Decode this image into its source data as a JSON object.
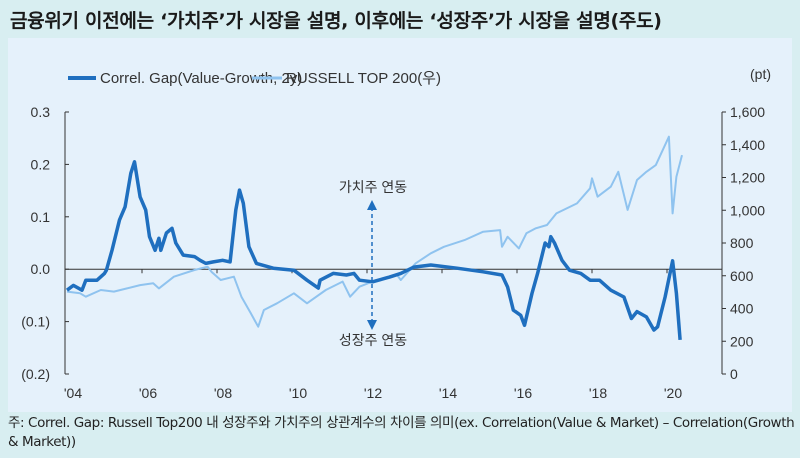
{
  "title": "금융위기 이전에는 ‘가치주’가 시장을 설명, 이후에는 ‘성장주’가 시장을 설명(주도)",
  "footnote": "주: Correl. Gap: Russell Top200 내 성장주와 가치주의 상관계수의 차이를 의미(ex. Correlation(Value & Market) – Correlation(Growth & Market))",
  "chart_data": {
    "type": "line",
    "title": "",
    "right_unit": "(pt)",
    "legend_position": "top",
    "grid": false,
    "x_ticks": [
      "'04",
      "'06",
      "'08",
      "'10",
      "'12",
      "'14",
      "'16",
      "'18",
      "'20"
    ],
    "x_range": [
      2004,
      2021.4
    ],
    "y_left": {
      "ticks": [
        "0.3",
        "0.2",
        "0.1",
        "0.0",
        "(0.1)",
        "(0.2)"
      ],
      "range": [
        -0.2,
        0.3
      ]
    },
    "y_right": {
      "ticks": [
        "1,600",
        "1,400",
        "1,200",
        "1,000",
        "800",
        "600",
        "400",
        "200",
        "0"
      ],
      "range": [
        0,
        1600
      ]
    },
    "annotations": {
      "up": "가치주 연동",
      "down": "성장주 연동"
    },
    "colors": {
      "gap": "#1f6fbf",
      "russell": "#8fc3ef"
    },
    "series": [
      {
        "name": "Correl. Gap(Value-Growth, 2y)",
        "axis": "left",
        "x": [
          2004.0,
          2004.17,
          2004.4,
          2004.5,
          2004.8,
          2005.0,
          2005.05,
          2005.2,
          2005.4,
          2005.55,
          2005.7,
          2005.8,
          2005.95,
          2006.1,
          2006.2,
          2006.35,
          2006.45,
          2006.5,
          2006.65,
          2006.8,
          2006.9,
          2007.1,
          2007.4,
          2007.55,
          2007.7,
          2007.9,
          2008.15,
          2008.35,
          2008.5,
          2008.6,
          2008.7,
          2008.85,
          2009.05,
          2009.5,
          2010.05,
          2010.4,
          2010.7,
          2010.75,
          2011.1,
          2011.45,
          2011.65,
          2011.8,
          2012.15,
          2012.5,
          2012.6,
          2012.9,
          2013.25,
          2013.7,
          2014.4,
          2015.1,
          2015.6,
          2015.75,
          2015.9,
          2016.1,
          2016.2,
          2016.4,
          2016.55,
          2016.75,
          2016.85,
          2016.9,
          2017.0,
          2017.2,
          2017.4,
          2017.7,
          2017.95,
          2018.2,
          2018.5,
          2018.85,
          2019.05,
          2019.2,
          2019.45,
          2019.65,
          2019.75,
          2019.95,
          2020.15,
          2020.25,
          2020.35
        ],
        "y": [
          -0.04,
          -0.031,
          -0.04,
          -0.021,
          -0.021,
          -0.008,
          -0.002,
          0.036,
          0.094,
          0.119,
          0.183,
          0.205,
          0.138,
          0.113,
          0.062,
          0.036,
          0.059,
          0.036,
          0.069,
          0.078,
          0.05,
          0.027,
          0.024,
          0.017,
          0.011,
          0.014,
          0.017,
          0.014,
          0.113,
          0.151,
          0.126,
          0.043,
          0.011,
          0.002,
          -0.002,
          -0.021,
          -0.036,
          -0.021,
          -0.008,
          -0.011,
          -0.008,
          -0.021,
          -0.024,
          -0.017,
          -0.015,
          -0.008,
          0.004,
          0.008,
          0.002,
          -0.005,
          -0.011,
          -0.034,
          -0.078,
          -0.088,
          -0.107,
          -0.046,
          -0.008,
          0.05,
          0.043,
          0.062,
          0.05,
          0.017,
          -0.002,
          -0.008,
          -0.021,
          -0.021,
          -0.04,
          -0.053,
          -0.094,
          -0.081,
          -0.091,
          -0.116,
          -0.11,
          -0.053,
          0.016,
          -0.046,
          -0.135
        ]
      },
      {
        "name": "RUSSELL TOP 200(우)",
        "axis": "right",
        "x": [
          2004.0,
          2004.35,
          2004.5,
          2004.9,
          2005.25,
          2005.6,
          2005.95,
          2006.3,
          2006.45,
          2006.85,
          2007.4,
          2007.75,
          2007.85,
          2008.1,
          2008.45,
          2008.65,
          2008.9,
          2009.1,
          2009.25,
          2009.6,
          2010.05,
          2010.4,
          2010.9,
          2011.35,
          2011.55,
          2011.8,
          2012.25,
          2012.8,
          2012.9,
          2013.3,
          2013.7,
          2014.05,
          2014.6,
          2015.1,
          2015.55,
          2015.6,
          2015.75,
          2016.05,
          2016.25,
          2016.5,
          2016.8,
          2017.05,
          2017.6,
          2017.95,
          2018.0,
          2018.15,
          2018.5,
          2018.7,
          2018.95,
          2019.2,
          2019.45,
          2019.7,
          2020.05,
          2020.15,
          2020.25,
          2020.4
        ],
        "y": [
          503,
          493,
          472,
          513,
          503,
          523,
          543,
          554,
          523,
          594,
          635,
          655,
          625,
          574,
          594,
          472,
          371,
          289,
          391,
          432,
          493,
          432,
          513,
          564,
          472,
          533,
          574,
          605,
          574,
          676,
          737,
          777,
          818,
          869,
          879,
          777,
          838,
          767,
          859,
          890,
          910,
          981,
          1042,
          1134,
          1195,
          1083,
          1144,
          1235,
          1002,
          1185,
          1235,
          1276,
          1449,
          981,
          1205,
          1337
        ]
      }
    ]
  }
}
